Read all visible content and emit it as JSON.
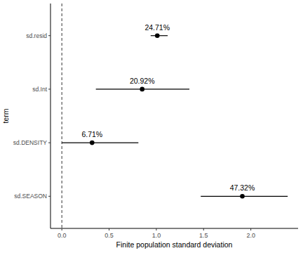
{
  "chart_data": {
    "type": "pointrange",
    "orientation": "horizontal",
    "x_label": "Finite population standard deviation",
    "y_label": "term",
    "categories": [
      "sd.resid",
      "sd.Int",
      "sd.DENSITY",
      "sd.SEASON"
    ],
    "values": [
      1.01,
      0.85,
      0.32,
      1.91
    ],
    "lower": [
      0.94,
      0.36,
      0.0,
      1.47
    ],
    "upper": [
      1.12,
      1.35,
      0.81,
      2.39
    ],
    "percent_labels": [
      "24.71%",
      "20.92%",
      "6.71%",
      "47.32%"
    ],
    "xlim": [
      -0.12,
      2.5
    ],
    "xticks": [
      {
        "value": 0,
        "label": "0.0"
      },
      0.5,
      {
        "value": 1,
        "label": "1.0"
      },
      1.5,
      {
        "value": 2,
        "label": "2.0"
      }
    ],
    "vline": 0,
    "color": "#000000",
    "grid": false
  }
}
